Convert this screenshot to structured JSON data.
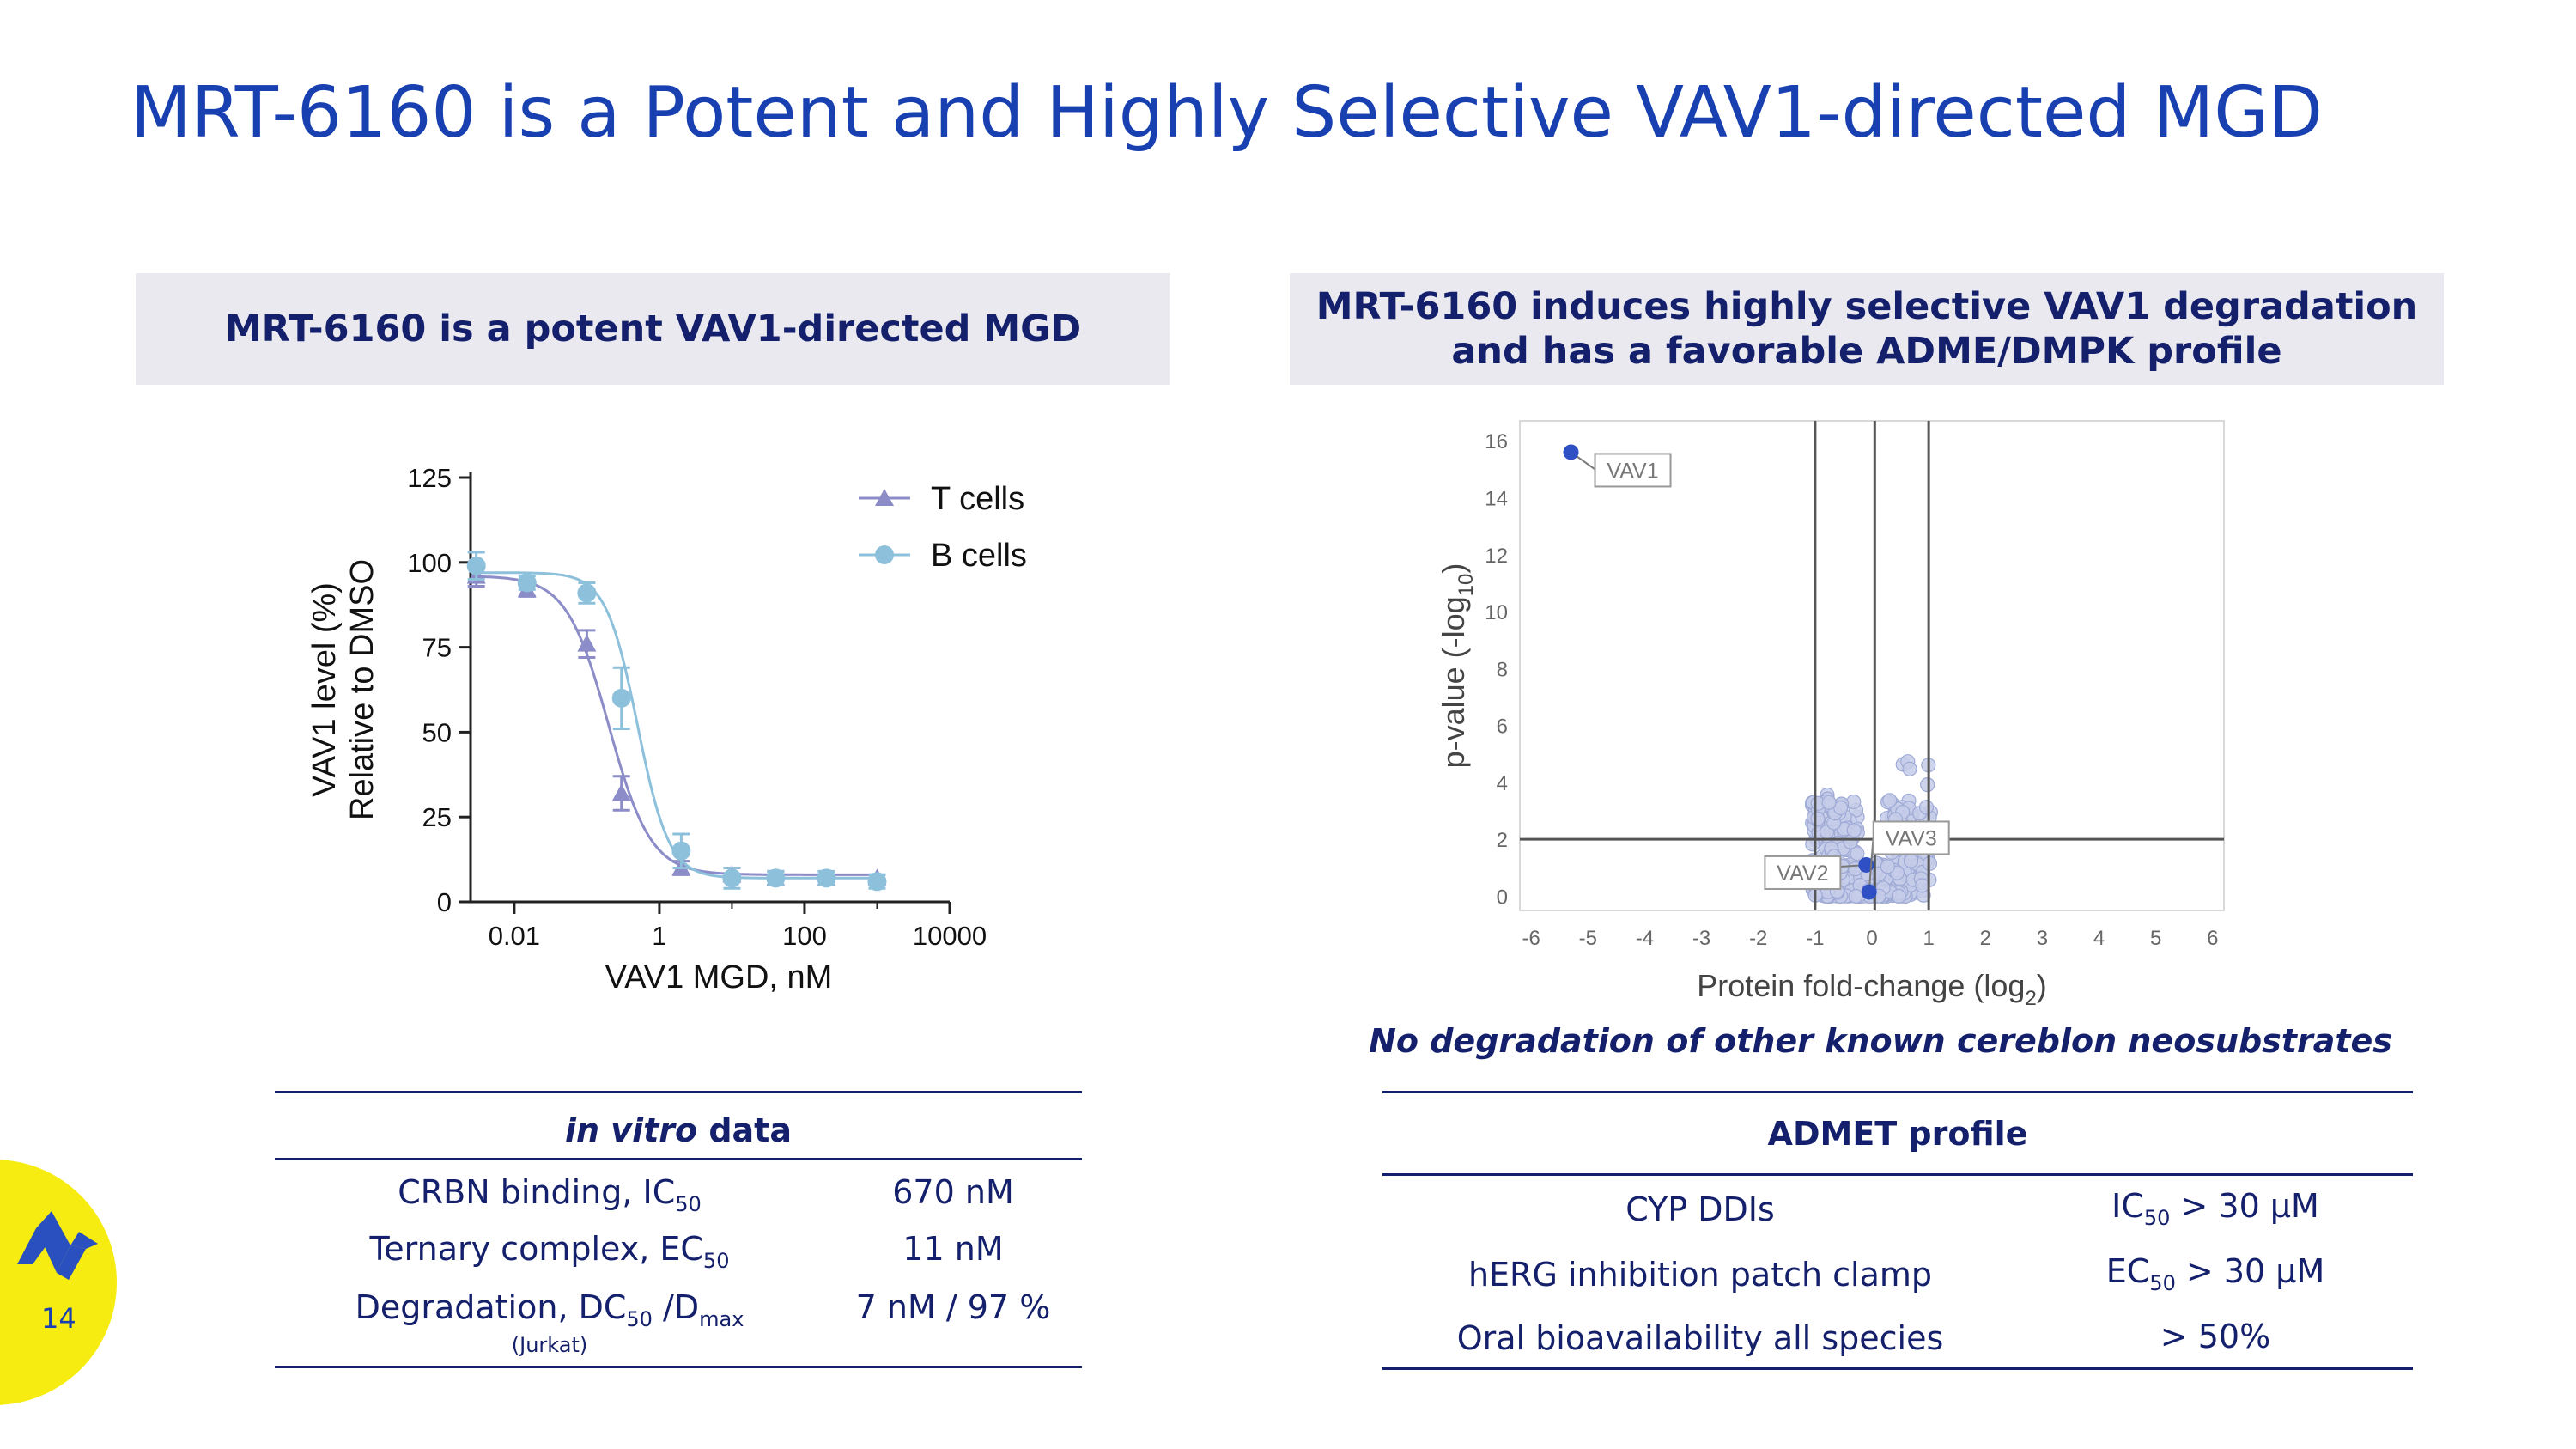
{
  "title": "MRT-6160 is a Potent and Highly Selective VAV1-directed MGD",
  "left_panel": {
    "heading": "MRT-6160 is a potent VAV1-directed MGD"
  },
  "right_panel": {
    "heading_line1": "MRT-6160 induces highly selective VAV1 degradation",
    "heading_line2": "and has a favorable ADME/DMPK profile"
  },
  "note": "No degradation of other known cereblon neosubstrates",
  "page_number": "14",
  "colors": {
    "title": "#1840b0",
    "navy": "#14206b",
    "t_cells": "#8b8cc8",
    "b_cells": "#8cc0db",
    "volcano_points": "#c5cde9",
    "volcano_highlight": "#2f4fc4",
    "yellow": "#f6ec12"
  },
  "chart_data": [
    {
      "type": "line",
      "title": "",
      "xlabel": "VAV1 MGD, nM",
      "ylabel_line1": "VAV1 level (%)",
      "ylabel_line2": "Relative to DMSO",
      "x_scale": "log10",
      "xlim": [
        0.0025,
        10000
      ],
      "ylim": [
        0,
        125
      ],
      "xticks": [
        0.01,
        1,
        100,
        10000
      ],
      "xtick_labels": [
        "0.01",
        "1",
        "100",
        "10000"
      ],
      "yticks": [
        0,
        25,
        50,
        75,
        100,
        125
      ],
      "ytick_labels": [
        "0",
        "25",
        "50",
        "75",
        "100",
        "125"
      ],
      "legend_position": "top-right",
      "series": [
        {
          "name": "T cells",
          "marker": "triangle",
          "color": "#8b8cc8",
          "ic50": 0.2,
          "top": 96,
          "bottom": 8,
          "hill": 1.5,
          "points": [
            {
              "x": 0.003,
              "y": 96,
              "err": 3
            },
            {
              "x": 0.015,
              "y": 92,
              "err": 2
            },
            {
              "x": 0.1,
              "y": 76,
              "err": 4
            },
            {
              "x": 0.3,
              "y": 32,
              "err": 5
            },
            {
              "x": 2,
              "y": 10,
              "err": 2
            },
            {
              "x": 10,
              "y": 8,
              "err": 2
            },
            {
              "x": 40,
              "y": 7,
              "err": 2
            },
            {
              "x": 200,
              "y": 7,
              "err": 1
            },
            {
              "x": 1000,
              "y": 7,
              "err": 1
            }
          ]
        },
        {
          "name": "B cells",
          "marker": "circle",
          "color": "#8cc0db",
          "ic50": 0.5,
          "top": 97,
          "bottom": 7,
          "hill": 2.0,
          "points": [
            {
              "x": 0.003,
              "y": 99,
              "err": 4
            },
            {
              "x": 0.015,
              "y": 94,
              "err": 2
            },
            {
              "x": 0.1,
              "y": 91,
              "err": 3
            },
            {
              "x": 0.3,
              "y": 60,
              "err": 9
            },
            {
              "x": 2,
              "y": 15,
              "err": 5
            },
            {
              "x": 10,
              "y": 7,
              "err": 3
            },
            {
              "x": 40,
              "y": 7,
              "err": 2
            },
            {
              "x": 200,
              "y": 7,
              "err": 2
            },
            {
              "x": 1000,
              "y": 6,
              "err": 2
            }
          ]
        }
      ]
    },
    {
      "type": "scatter",
      "title": "",
      "xlabel": "Protein fold-change (log",
      "xlabel_sub": "2",
      "xlabel_end": ")",
      "ylabel": "p-value (-log",
      "ylabel_sub": "10",
      "ylabel_end": ")",
      "xlim": [
        -6.2,
        6.2
      ],
      "ylim": [
        -0.5,
        16.7
      ],
      "xticks": [
        -6,
        -5,
        -4,
        -3,
        -2,
        -1,
        0,
        1,
        2,
        3,
        4,
        5,
        6
      ],
      "xtick_labels": [
        "-6",
        "-5",
        "-4",
        "-3",
        "-2",
        "-1",
        "0",
        "1",
        "2",
        "3",
        "4",
        "5",
        "6"
      ],
      "yticks": [
        0,
        2,
        4,
        6,
        8,
        10,
        12,
        14,
        16
      ],
      "ytick_labels": [
        "0",
        "2",
        "4",
        "6",
        "8",
        "10",
        "12",
        "14",
        "16"
      ],
      "vlines": [
        -1,
        0.05,
        1
      ],
      "hline": 2,
      "highlighted": [
        {
          "label": "VAV1",
          "x": -5.3,
          "y": 15.6
        },
        {
          "label": "VAV2",
          "x": -0.1,
          "y": 1.1
        },
        {
          "label": "VAV3",
          "x": -0.05,
          "y": 0.15
        }
      ]
    }
  ],
  "in_vitro_table": {
    "header_italic": "in vitro",
    "header_rest": " data",
    "rows": [
      {
        "label": "CRBN binding, IC",
        "label_sub": "50",
        "label_end": "",
        "value": "670 nM"
      },
      {
        "label": "Ternary complex, EC",
        "label_sub": "50",
        "label_end": "",
        "value": "11 nM"
      },
      {
        "label": "Degradation, DC",
        "label_sub": "50",
        "label_end": " /D",
        "label_sub2": "max",
        "value": "7 nM / 97 %"
      }
    ],
    "footnote": "(Jurkat)"
  },
  "admet_table": {
    "header": "ADMET profile",
    "rows": [
      {
        "label": "CYP DDIs",
        "value_pre": "IC",
        "value_sub": "50",
        "value_post": " > 30 μM"
      },
      {
        "label": "hERG inhibition patch clamp",
        "value_pre": "EC",
        "value_sub": "50",
        "value_post": " > 30 μM"
      },
      {
        "label": "Oral bioavailability all species",
        "value_pre": "> 50%",
        "value_sub": "",
        "value_post": ""
      }
    ]
  }
}
